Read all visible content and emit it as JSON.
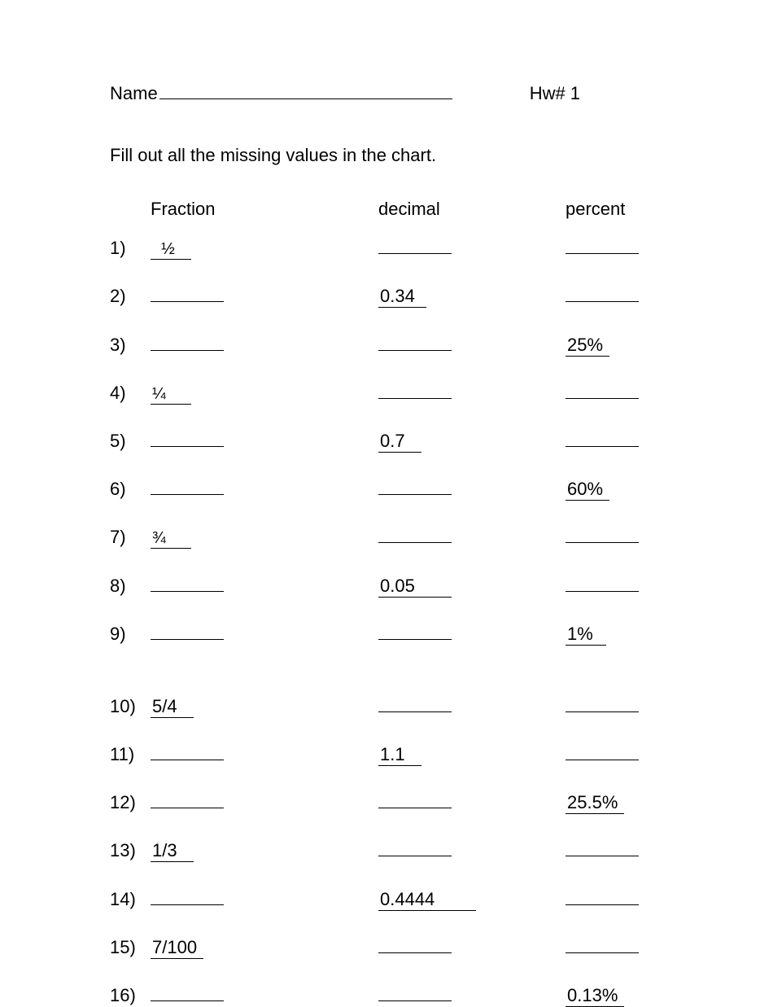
{
  "header": {
    "name_label": "Name",
    "hw_label": "Hw# 1"
  },
  "instructions": "Fill out all the missing values in the chart.",
  "columns": {
    "fraction": "Fraction",
    "decimal": "decimal",
    "percent": "percent"
  },
  "rows": [
    {
      "n": "1)",
      "fraction": "  ½ ",
      "decimal": "",
      "percent": ""
    },
    {
      "n": "2)",
      "fraction": "",
      "decimal": "0.34 ",
      "percent": ""
    },
    {
      "n": "3)",
      "fraction": "",
      "decimal": "",
      "percent": "25%"
    },
    {
      "n": "4)",
      "fraction": "¼    ",
      "decimal": "",
      "percent": ""
    },
    {
      "n": "5)",
      "fraction": "",
      "decimal": "0.7  ",
      "percent": ""
    },
    {
      "n": "6)",
      "fraction": "",
      "decimal": "",
      "percent": "60%"
    },
    {
      "n": "7)",
      "fraction": "¾    ",
      "decimal": "",
      "percent": ""
    },
    {
      "n": "8)",
      "fraction": "",
      "decimal": "0.05      ",
      "percent": ""
    },
    {
      "n": "9)",
      "fraction": "",
      "decimal": "",
      "percent": "1%"
    },
    {
      "n": "10)",
      "fraction": "5/4  ",
      "decimal": "",
      "percent": ""
    },
    {
      "n": "11)",
      "fraction": "",
      "decimal": "1.1  ",
      "percent": ""
    },
    {
      "n": "12)",
      "fraction": "",
      "decimal": "",
      "percent": "25.5%"
    },
    {
      "n": "13)",
      "fraction": "1/3  ",
      "decimal": "",
      "percent": ""
    },
    {
      "n": "14)",
      "fraction": "",
      "decimal": "0.4444  ",
      "percent": ""
    },
    {
      "n": "15)",
      "fraction": "7/100",
      "decimal": "",
      "percent": ""
    },
    {
      "n": "16)",
      "fraction": "",
      "decimal": "",
      "percent": "0.13%"
    }
  ]
}
